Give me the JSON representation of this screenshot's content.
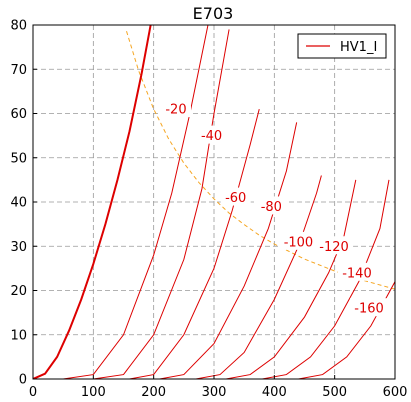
{
  "chart_data": {
    "type": "line",
    "title": "E703",
    "xlabel": "",
    "ylabel": "",
    "xlim": [
      0,
      600
    ],
    "ylim": [
      0,
      80
    ],
    "xticks": [
      0,
      100,
      200,
      300,
      400,
      500,
      600
    ],
    "yticks": [
      0,
      10,
      20,
      30,
      40,
      50,
      60,
      70,
      80
    ],
    "grid": true,
    "legend": {
      "placement": "top-right",
      "entries": [
        "HV1_I"
      ]
    },
    "colors": {
      "curve": "#dd0000",
      "dissipation": "#f5a623",
      "grid": "#999999"
    },
    "series": [
      {
        "name": "HV1_I",
        "label": "",
        "bold": true,
        "x": [
          0,
          20,
          40,
          60,
          80,
          100,
          120,
          140,
          160,
          180,
          195
        ],
        "y": [
          0,
          1.2,
          5,
          11,
          18,
          26,
          35,
          45,
          56,
          69,
          80
        ]
      },
      {
        "label": "-20",
        "x": [
          50,
          100,
          150,
          200,
          230,
          260,
          290
        ],
        "y": [
          0,
          1,
          10,
          28,
          42,
          60,
          80
        ]
      },
      {
        "label": "-40",
        "x": [
          100,
          150,
          200,
          250,
          280,
          300,
          325
        ],
        "y": [
          0,
          1,
          10,
          27,
          43,
          60,
          79
        ]
      },
      {
        "label": "-60",
        "x": [
          160,
          200,
          250,
          300,
          330,
          360,
          375
        ],
        "y": [
          0,
          1,
          10,
          25,
          38,
          53,
          61
        ]
      },
      {
        "label": "-80",
        "x": [
          210,
          250,
          300,
          350,
          390,
          420,
          437
        ],
        "y": [
          0,
          1,
          8,
          21,
          34,
          47,
          58
        ]
      },
      {
        "label": "-100",
        "x": [
          270,
          310,
          350,
          400,
          440,
          470,
          478
        ],
        "y": [
          0,
          1,
          6,
          18,
          30,
          42,
          46
        ]
      },
      {
        "label": "-120",
        "x": [
          320,
          360,
          400,
          450,
          490,
          515,
          535
        ],
        "y": [
          0,
          1,
          5,
          14,
          24,
          32,
          45
        ]
      },
      {
        "label": "-140",
        "x": [
          380,
          420,
          460,
          500,
          540,
          575,
          590
        ],
        "y": [
          0,
          1,
          5,
          12,
          22,
          34,
          45
        ]
      },
      {
        "label": "-160",
        "x": [
          440,
          480,
          520,
          560,
          600
        ],
        "y": [
          0,
          1,
          5,
          12,
          22
        ]
      }
    ],
    "dissipation_curve": {
      "x": [
        155,
        175,
        200,
        225,
        250,
        275,
        300,
        325,
        350,
        375,
        400,
        450,
        500,
        550,
        600
      ],
      "y": [
        78.6,
        69.7,
        61.0,
        54.2,
        48.8,
        44.4,
        40.7,
        37.5,
        34.9,
        32.5,
        30.5,
        27.1,
        24.4,
        22.2,
        20.3
      ]
    },
    "annotations": [
      {
        "text": "-20",
        "x": 237,
        "y": 61
      },
      {
        "text": "-40",
        "x": 296,
        "y": 55
      },
      {
        "text": "-60",
        "x": 336,
        "y": 41
      },
      {
        "text": "-80",
        "x": 395,
        "y": 39
      },
      {
        "text": "-100",
        "x": 440,
        "y": 31
      },
      {
        "text": "-120",
        "x": 499,
        "y": 30
      },
      {
        "text": "-140",
        "x": 537,
        "y": 24
      },
      {
        "text": "-160",
        "x": 557,
        "y": 16
      }
    ]
  }
}
